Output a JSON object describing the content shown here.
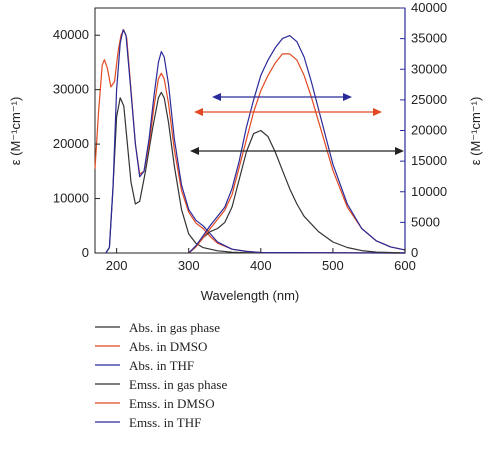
{
  "chart_data": {
    "type": "line",
    "xlabel": "Wavelength (nm)",
    "ylabel_left": "ε (M⁻¹cm⁻¹)",
    "ylabel_right": "ε (M⁻¹cm⁻¹)",
    "xlim": [
      170,
      600
    ],
    "ylim_left": [
      0,
      45000
    ],
    "ylim_right": [
      0,
      40000
    ],
    "x_ticks": [
      200,
      300,
      400,
      500,
      600
    ],
    "y_ticks_left": [
      0,
      10000,
      20000,
      30000,
      40000
    ],
    "y_ticks_right": [
      0,
      5000,
      10000,
      15000,
      20000,
      25000,
      30000,
      35000,
      40000
    ],
    "grid": false,
    "legend_position": "below",
    "right_axis_color": "#2a2a9a",
    "series": [
      {
        "name": "Abs. in gas phase",
        "color": "#333333",
        "axis": "left",
        "points": [
          [
            185,
            0
          ],
          [
            190,
            1000
          ],
          [
            195,
            12000
          ],
          [
            200,
            25000
          ],
          [
            205,
            28500
          ],
          [
            210,
            27000
          ],
          [
            215,
            20000
          ],
          [
            220,
            13000
          ],
          [
            226,
            9000
          ],
          [
            232,
            9500
          ],
          [
            240,
            15000
          ],
          [
            250,
            23000
          ],
          [
            258,
            28500
          ],
          [
            262,
            29500
          ],
          [
            266,
            28500
          ],
          [
            272,
            24000
          ],
          [
            280,
            16000
          ],
          [
            290,
            8000
          ],
          [
            300,
            3500
          ],
          [
            310,
            1800
          ],
          [
            320,
            1000
          ],
          [
            330,
            700
          ],
          [
            340,
            400
          ],
          [
            360,
            150
          ],
          [
            380,
            60
          ],
          [
            400,
            30
          ],
          [
            600,
            0
          ]
        ]
      },
      {
        "name": "Abs. in DMSO",
        "color": "#e24a22",
        "axis": "left",
        "points": [
          [
            170,
            15500
          ],
          [
            175,
            26000
          ],
          [
            180,
            34500
          ],
          [
            183,
            35500
          ],
          [
            187,
            34000
          ],
          [
            192,
            30500
          ],
          [
            197,
            31500
          ],
          [
            202,
            37000
          ],
          [
            206,
            40000
          ],
          [
            210,
            41000
          ],
          [
            214,
            39500
          ],
          [
            220,
            30000
          ],
          [
            226,
            20000
          ],
          [
            232,
            14500
          ],
          [
            238,
            15000
          ],
          [
            245,
            20000
          ],
          [
            252,
            27000
          ],
          [
            258,
            32000
          ],
          [
            262,
            33000
          ],
          [
            266,
            32000
          ],
          [
            272,
            27500
          ],
          [
            280,
            19000
          ],
          [
            290,
            11500
          ],
          [
            300,
            7500
          ],
          [
            310,
            5500
          ],
          [
            320,
            4500
          ],
          [
            330,
            3000
          ],
          [
            340,
            1800
          ],
          [
            360,
            700
          ],
          [
            380,
            300
          ],
          [
            400,
            100
          ],
          [
            600,
            0
          ]
        ]
      },
      {
        "name": "Abs. in THF",
        "color": "#2a2a9a",
        "axis": "left",
        "points": [
          [
            185,
            0
          ],
          [
            190,
            1000
          ],
          [
            195,
            12000
          ],
          [
            200,
            30000
          ],
          [
            205,
            38500
          ],
          [
            209,
            41000
          ],
          [
            213,
            40000
          ],
          [
            219,
            31000
          ],
          [
            226,
            20000
          ],
          [
            232,
            14000
          ],
          [
            238,
            15000
          ],
          [
            245,
            21000
          ],
          [
            252,
            29000
          ],
          [
            258,
            35000
          ],
          [
            262,
            37000
          ],
          [
            266,
            36000
          ],
          [
            272,
            31000
          ],
          [
            280,
            21000
          ],
          [
            290,
            12500
          ],
          [
            300,
            8000
          ],
          [
            310,
            6000
          ],
          [
            320,
            5000
          ],
          [
            330,
            3500
          ],
          [
            340,
            2000
          ],
          [
            360,
            700
          ],
          [
            380,
            300
          ],
          [
            400,
            100
          ],
          [
            600,
            0
          ]
        ]
      },
      {
        "name": "Emss. in gas phase",
        "color": "#333333",
        "axis": "right",
        "points": [
          [
            300,
            0
          ],
          [
            310,
            1000
          ],
          [
            320,
            2500
          ],
          [
            330,
            3500
          ],
          [
            340,
            4000
          ],
          [
            350,
            5000
          ],
          [
            360,
            7500
          ],
          [
            370,
            12000
          ],
          [
            380,
            16500
          ],
          [
            390,
            19500
          ],
          [
            400,
            20000
          ],
          [
            410,
            19000
          ],
          [
            420,
            16500
          ],
          [
            430,
            13500
          ],
          [
            440,
            10500
          ],
          [
            450,
            8000
          ],
          [
            460,
            6000
          ],
          [
            480,
            3500
          ],
          [
            500,
            1800
          ],
          [
            520,
            900
          ],
          [
            540,
            400
          ],
          [
            560,
            150
          ],
          [
            600,
            0
          ]
        ]
      },
      {
        "name": "Emss. in DMSO",
        "color": "#e24a22",
        "axis": "right",
        "points": [
          [
            300,
            0
          ],
          [
            310,
            1000
          ],
          [
            320,
            2500
          ],
          [
            330,
            4000
          ],
          [
            340,
            5500
          ],
          [
            350,
            7000
          ],
          [
            360,
            9500
          ],
          [
            370,
            14000
          ],
          [
            380,
            18500
          ],
          [
            390,
            23000
          ],
          [
            400,
            26500
          ],
          [
            410,
            29000
          ],
          [
            420,
            31000
          ],
          [
            430,
            32500
          ],
          [
            440,
            32500
          ],
          [
            450,
            31500
          ],
          [
            460,
            29000
          ],
          [
            470,
            25500
          ],
          [
            480,
            21500
          ],
          [
            490,
            17500
          ],
          [
            500,
            13500
          ],
          [
            520,
            7500
          ],
          [
            540,
            4000
          ],
          [
            560,
            2000
          ],
          [
            580,
            1000
          ],
          [
            600,
            500
          ]
        ]
      },
      {
        "name": "Emss. in THF",
        "color": "#2a2a9a",
        "axis": "right",
        "points": [
          [
            300,
            0
          ],
          [
            310,
            1200
          ],
          [
            320,
            2800
          ],
          [
            330,
            4500
          ],
          [
            340,
            6000
          ],
          [
            350,
            7500
          ],
          [
            360,
            10500
          ],
          [
            370,
            15000
          ],
          [
            380,
            20500
          ],
          [
            390,
            25000
          ],
          [
            400,
            29000
          ],
          [
            410,
            31500
          ],
          [
            420,
            33500
          ],
          [
            430,
            35000
          ],
          [
            440,
            35500
          ],
          [
            450,
            34500
          ],
          [
            460,
            32000
          ],
          [
            470,
            28000
          ],
          [
            480,
            23500
          ],
          [
            490,
            19000
          ],
          [
            500,
            14500
          ],
          [
            520,
            8000
          ],
          [
            540,
            4000
          ],
          [
            560,
            2000
          ],
          [
            580,
            1000
          ],
          [
            600,
            500
          ]
        ]
      }
    ]
  }
}
